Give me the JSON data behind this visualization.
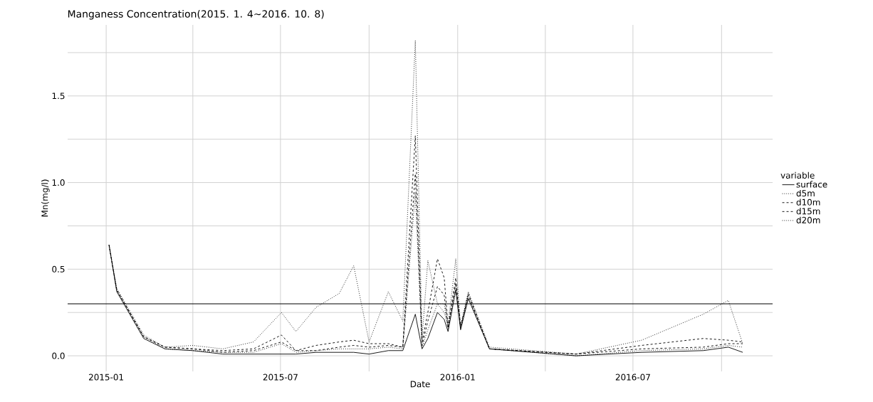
{
  "chart_data": {
    "type": "line",
    "title": "Manganess Concentration(2015. 1. 4~2016. 10. 8)",
    "xlabel": "Date",
    "ylabel": "Mn(mg/l)",
    "legend_title": "variable",
    "x": [
      "2015-01-04",
      "2015-01-12",
      "2015-02-09",
      "2015-03-03",
      "2015-04-01",
      "2015-05-02",
      "2015-06-03",
      "2015-07-02",
      "2015-07-17",
      "2015-08-07",
      "2015-08-31",
      "2015-09-15",
      "2015-10-01",
      "2015-10-21",
      "2015-11-05",
      "2015-11-18",
      "2015-11-25",
      "2015-12-01",
      "2015-12-11",
      "2015-12-18",
      "2015-12-22",
      "2015-12-30",
      "2016-01-04",
      "2016-01-12",
      "2016-02-03",
      "2016-05-03",
      "2016-07-10",
      "2016-09-12",
      "2016-10-08",
      "2016-10-23"
    ],
    "series": [
      {
        "name": "surface",
        "color": "#000000",
        "line_style": "solid",
        "values": [
          0.64,
          0.37,
          0.1,
          0.04,
          0.03,
          0.01,
          0.01,
          0.01,
          0.01,
          0.02,
          0.02,
          0.02,
          0.01,
          0.03,
          0.03,
          0.24,
          0.04,
          0.1,
          0.25,
          0.21,
          0.14,
          0.38,
          0.15,
          0.33,
          0.04,
          0.0,
          0.02,
          0.03,
          0.05,
          0.02
        ]
      },
      {
        "name": "d5m",
        "color": "#000000",
        "line_style": "dotted",
        "values": [
          0.64,
          0.38,
          0.11,
          0.04,
          0.03,
          0.02,
          0.02,
          0.07,
          0.02,
          0.03,
          0.04,
          0.04,
          0.04,
          0.05,
          0.04,
          0.94,
          0.05,
          0.15,
          0.3,
          0.3,
          0.15,
          0.4,
          0.16,
          0.34,
          0.04,
          0.0,
          0.03,
          0.04,
          0.06,
          0.05
        ]
      },
      {
        "name": "d10m",
        "color": "#000000",
        "line_style": "dashed",
        "values": [
          0.64,
          0.38,
          0.11,
          0.05,
          0.04,
          0.02,
          0.03,
          0.08,
          0.03,
          0.03,
          0.05,
          0.06,
          0.05,
          0.06,
          0.05,
          1.05,
          0.06,
          0.2,
          0.4,
          0.35,
          0.16,
          0.42,
          0.16,
          0.35,
          0.04,
          0.01,
          0.04,
          0.05,
          0.07,
          0.07
        ]
      },
      {
        "name": "d15m",
        "color": "#000000",
        "line_style": "dashed",
        "values": [
          0.64,
          0.38,
          0.11,
          0.05,
          0.04,
          0.03,
          0.04,
          0.12,
          0.03,
          0.06,
          0.08,
          0.09,
          0.07,
          0.07,
          0.05,
          1.27,
          0.08,
          0.25,
          0.56,
          0.45,
          0.17,
          0.45,
          0.17,
          0.36,
          0.04,
          0.01,
          0.06,
          0.1,
          0.09,
          0.08
        ]
      },
      {
        "name": "d20m",
        "color": "#000000",
        "line_style": "dotted",
        "values": [
          0.63,
          0.39,
          0.12,
          0.05,
          0.06,
          0.04,
          0.08,
          0.25,
          0.14,
          0.28,
          0.36,
          0.52,
          0.08,
          0.37,
          0.2,
          1.82,
          0.1,
          0.55,
          0.3,
          0.25,
          0.18,
          0.56,
          0.17,
          0.37,
          0.05,
          0.01,
          0.09,
          0.24,
          0.32,
          0.07
        ]
      }
    ],
    "xlim": [
      "2014-11-22",
      "2016-11-23"
    ],
    "xticks": [
      {
        "value": "2015-01-01",
        "label": "2015-01"
      },
      {
        "value": "2015-04-01",
        "label": null
      },
      {
        "value": "2015-07-01",
        "label": "2015-07"
      },
      {
        "value": "2015-10-01",
        "label": null
      },
      {
        "value": "2016-01-01",
        "label": "2016-01"
      },
      {
        "value": "2016-04-01",
        "label": null
      },
      {
        "value": "2016-07-01",
        "label": "2016-07"
      },
      {
        "value": "2016-10-01",
        "label": null
      }
    ],
    "ylim": [
      -0.09,
      1.91
    ],
    "yticks": [
      {
        "value": 0,
        "label": "0.0"
      },
      {
        "value": 0.25,
        "label": null
      },
      {
        "value": 0.5,
        "label": "0.5"
      },
      {
        "value": 0.75,
        "label": null
      },
      {
        "value": 1.0,
        "label": "1.0"
      },
      {
        "value": 1.25,
        "label": null
      },
      {
        "value": 1.5,
        "label": "1.5"
      },
      {
        "value": 1.75,
        "label": null
      }
    ],
    "ref_lines": [
      {
        "axis": "y",
        "value": 0.3,
        "color": "#000000"
      }
    ],
    "grid": true,
    "legend": "right"
  }
}
